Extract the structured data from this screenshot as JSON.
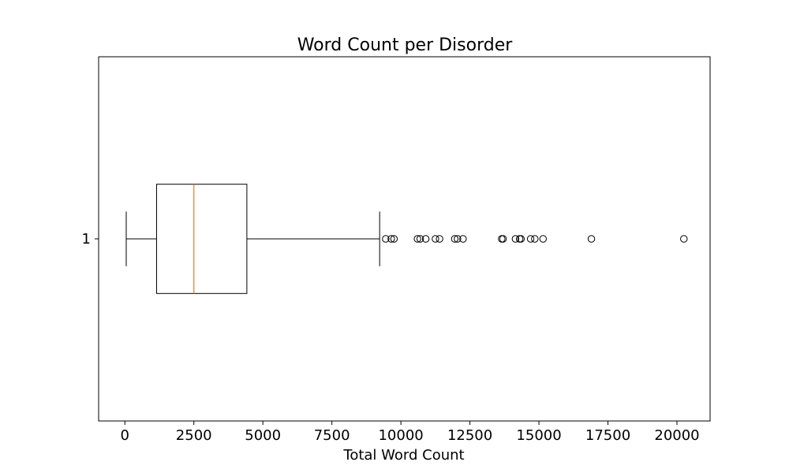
{
  "chart_data": {
    "type": "box",
    "orientation": "horizontal",
    "title": "Word Count per Disorder",
    "xlabel": "Total Word Count",
    "ylabel": "",
    "xlim": [
      -950,
      21200
    ],
    "ylim": [
      0.5,
      1.5
    ],
    "xticks": [
      0,
      2500,
      5000,
      7500,
      10000,
      12500,
      15000,
      17500,
      20000
    ],
    "yticks": [
      1
    ],
    "grid": false,
    "colors": {
      "box": "#000000",
      "median": "#e07b2a",
      "axes": "#000000",
      "background": "#ffffff"
    },
    "boxes": [
      {
        "category": "1",
        "whisker_low": 50,
        "q1": 1150,
        "median": 2500,
        "q3": 4420,
        "whisker_high": 9230,
        "outliers": [
          9450,
          9650,
          9750,
          10600,
          10700,
          10900,
          11250,
          11400,
          11950,
          12050,
          12250,
          13650,
          13700,
          14150,
          14300,
          14350,
          14700,
          14850,
          15150,
          16900,
          20250
        ]
      }
    ]
  }
}
